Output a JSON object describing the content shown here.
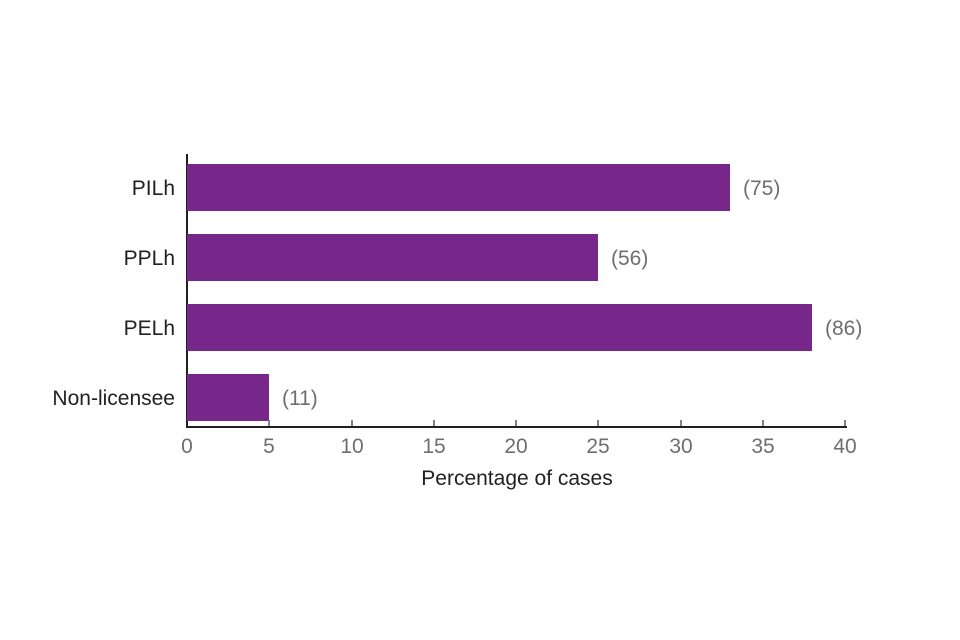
{
  "chart_data": {
    "type": "bar",
    "orientation": "horizontal",
    "title": "",
    "xlabel": "Percentage of cases",
    "ylabel": "",
    "xlim": [
      0,
      40
    ],
    "x_ticks": [
      0,
      5,
      10,
      15,
      20,
      25,
      30,
      35,
      40
    ],
    "grid": false,
    "legend": "none",
    "bar_color": "#762789",
    "categories": [
      "PILh",
      "PPLh",
      "PELh",
      "Non-licensee"
    ],
    "values": [
      33,
      25,
      38,
      5
    ],
    "data_labels": [
      "(75)",
      "(56)",
      "(86)",
      "(11)"
    ]
  },
  "colors": {
    "bar": "#762789",
    "axis": "#231f20",
    "tick": "#808285",
    "tick_text": "#6d6e71",
    "value_text": "#6d6e71",
    "category_text": "#231f20",
    "background": "#ffffff"
  },
  "layout_values": {
    "note": "percent scale 0-40 along x axis"
  }
}
